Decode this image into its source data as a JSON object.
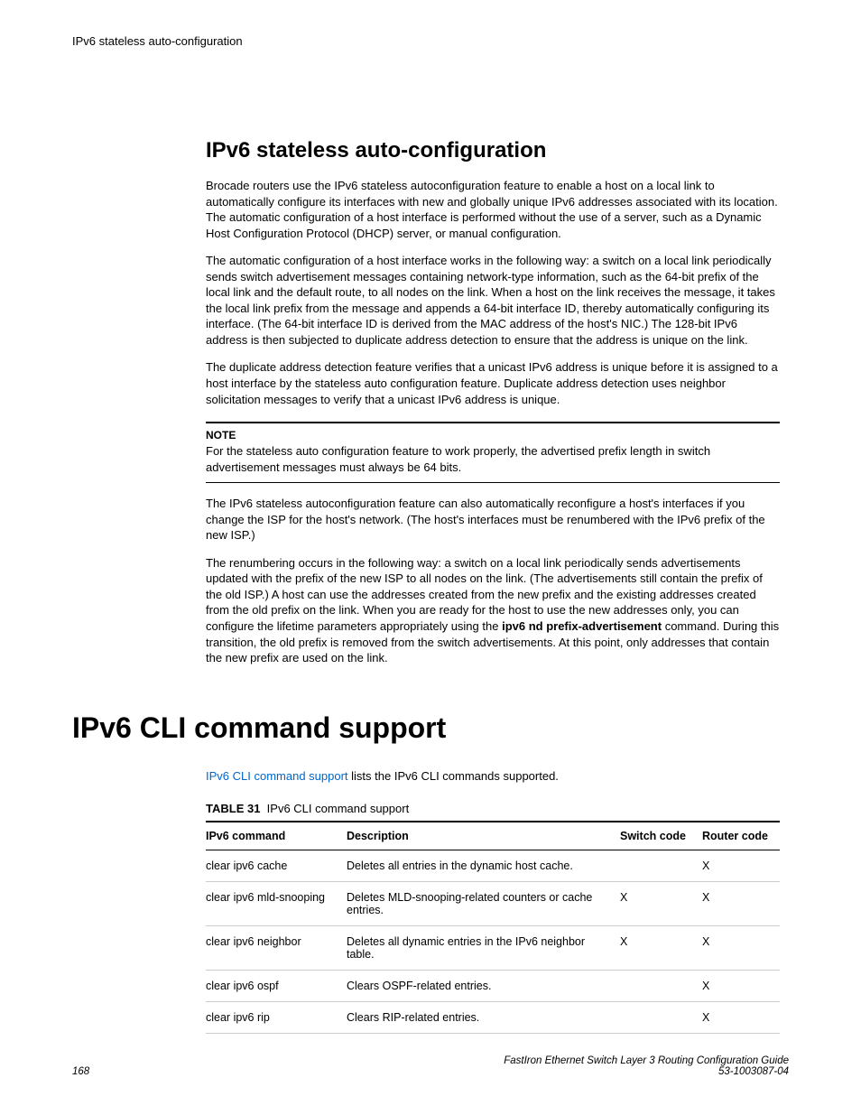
{
  "runningHead": "IPv6 stateless auto-configuration",
  "section1": {
    "title": "IPv6 stateless auto-configuration",
    "p1": "Brocade routers use the IPv6 stateless autoconfiguration feature to enable a host on a local link to automatically configure its interfaces with new and globally unique IPv6 addresses associated with its location. The automatic configuration of a host interface is performed without the use of a server, such as a Dynamic Host Configuration Protocol (DHCP) server, or manual configuration.",
    "p2": "The automatic configuration of a host interface works in the following way: a switch on a local link periodically sends switch advertisement messages containing network-type information, such as the 64-bit prefix of the local link and the default route, to all nodes on the link. When a host on the link receives the message, it takes the local link prefix from the message and appends a 64-bit interface ID, thereby automatically configuring its interface. (The 64-bit interface ID is derived from the MAC address of the host's NIC.) The 128-bit IPv6 address is then subjected to duplicate address detection to ensure that the address is unique on the link.",
    "p3": "The duplicate address detection feature verifies that a unicast IPv6 address is unique before it is assigned to a host interface by the stateless auto configuration feature. Duplicate address detection uses neighbor solicitation messages to verify that a unicast IPv6 address is unique.",
    "note": {
      "label": "NOTE",
      "text": "For the stateless auto configuration feature to work properly, the advertised prefix length in switch advertisement messages must always be 64 bits."
    },
    "p4": "The IPv6 stateless autoconfiguration feature can also automatically reconfigure a host's interfaces if you change the ISP for the host's network. (The host's interfaces must be renumbered with the IPv6 prefix of the new ISP.)",
    "p5a": "The renumbering occurs in the following way: a switch on a local link periodically sends advertisements updated with the prefix of the new ISP to all nodes on the link. (The advertisements still contain the prefix of the old ISP.) A host can use the addresses created from the new prefix and the existing addresses created from the old prefix on the link. When you are ready for the host to use the new addresses only, you can configure the lifetime parameters appropriately using the ",
    "p5bold": "ipv6 nd prefix-advertisement",
    "p5b": " command. During this transition, the old prefix is removed from the switch advertisements. At this point, only addresses that contain the new prefix are used on the link."
  },
  "section2": {
    "title": "IPv6 CLI command support",
    "introLink": "IPv6 CLI command support",
    "introRest": " lists the IPv6 CLI commands supported.",
    "tableLabel": "TABLE 31",
    "tableTitle": "IPv6 CLI command support",
    "columns": [
      "IPv6 command",
      "Description",
      "Switch code",
      "Router code"
    ],
    "rows": [
      {
        "cmd": "clear ipv6 cache",
        "desc": "Deletes all entries in the dynamic host cache.",
        "sw": "",
        "rt": "X"
      },
      {
        "cmd": "clear ipv6 mld-snooping",
        "desc": "Deletes MLD-snooping-related counters or cache entries.",
        "sw": "X",
        "rt": "X"
      },
      {
        "cmd": "clear ipv6 neighbor",
        "desc": "Deletes all dynamic entries in the IPv6 neighbor table.",
        "sw": "X",
        "rt": "X"
      },
      {
        "cmd": "clear ipv6 ospf",
        "desc": "Clears OSPF-related entries.",
        "sw": "",
        "rt": "X"
      },
      {
        "cmd": "clear ipv6 rip",
        "desc": "Clears RIP-related entries.",
        "sw": "",
        "rt": "X"
      }
    ]
  },
  "footer": {
    "pageNumber": "168",
    "guide": "FastIron Ethernet Switch Layer 3 Routing Configuration Guide",
    "docnum": "53-1003087-04"
  }
}
